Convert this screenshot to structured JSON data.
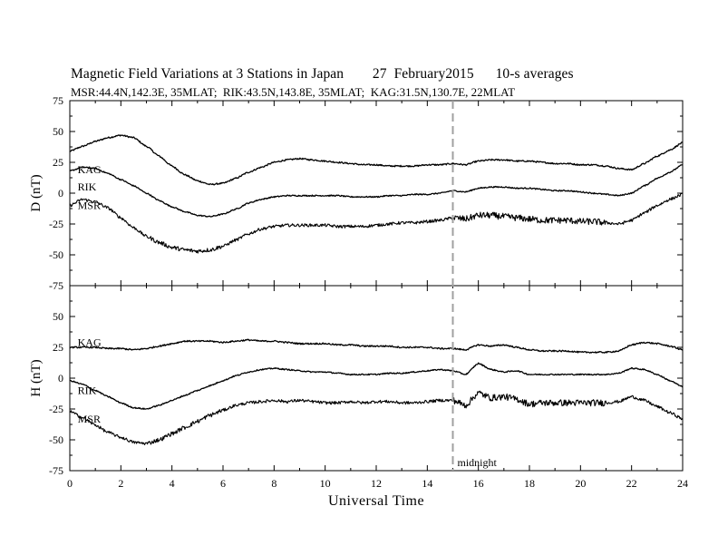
{
  "title": "Magnetic Field Variations at 3 Stations in Japan        27  February2015      10-s averages",
  "subtitle": "MSR:44.4N,142.3E, 35MLAT;  RIK:43.5N,143.8E, 35MLAT;  KAG:31.5N,130.7E, 22MLAT",
  "colors": {
    "trace": "#000000",
    "marker": "#a0a0a0",
    "axis": "#000000"
  },
  "chart_data": [
    {
      "type": "line",
      "panel": "top",
      "ylabel": "D (nT)",
      "xlabel": "",
      "ylim": [
        -75,
        75
      ],
      "xlim": [
        0,
        24
      ],
      "yticks": [
        75,
        50,
        25,
        0,
        -25,
        -50,
        -75
      ],
      "ytick_labels": [
        "75",
        "50",
        "25",
        "0",
        "-25",
        "-50",
        "-75"
      ],
      "grid": false,
      "series": [
        {
          "name": "KAG",
          "label_at": [
            0.2,
            19
          ],
          "noise": 0.6,
          "x": [
            0,
            0.5,
            1,
            1.5,
            2,
            2.5,
            3,
            3.5,
            4,
            4.5,
            5,
            5.5,
            6,
            6.5,
            7,
            7.5,
            8,
            8.5,
            9,
            9.5,
            10,
            10.5,
            11,
            11.5,
            12,
            12.5,
            13,
            13.5,
            14,
            14.5,
            15,
            15.5,
            16,
            16.5,
            17,
            17.5,
            18,
            18.5,
            19,
            19.5,
            20,
            20.5,
            21,
            21.5,
            22,
            22.5,
            23,
            23.5,
            24
          ],
          "y": [
            34,
            38,
            42,
            45,
            47,
            45,
            38,
            30,
            22,
            15,
            10,
            7,
            8,
            12,
            17,
            21,
            25,
            27,
            28,
            27,
            26,
            25,
            24,
            23,
            23,
            22,
            22,
            22,
            23,
            23,
            24,
            23,
            26,
            27,
            27,
            26,
            26,
            25,
            24,
            24,
            23,
            23,
            22,
            20,
            19,
            24,
            30,
            35,
            41
          ]
        },
        {
          "name": "RIK",
          "label_at": [
            0.2,
            5
          ],
          "noise": 0.5,
          "x": [
            0,
            0.5,
            1,
            1.5,
            2,
            2.5,
            3,
            3.5,
            4,
            4.5,
            5,
            5.5,
            6,
            6.5,
            7,
            7.5,
            8,
            8.5,
            9,
            9.5,
            10,
            10.5,
            11,
            11.5,
            12,
            12.5,
            13,
            13.5,
            14,
            14.5,
            15,
            15.5,
            16,
            16.5,
            17,
            17.5,
            18,
            18.5,
            19,
            19.5,
            20,
            20.5,
            21,
            21.5,
            22,
            22.5,
            23,
            23.5,
            24
          ],
          "y": [
            18,
            21,
            20,
            16,
            11,
            6,
            0,
            -6,
            -11,
            -15,
            -18,
            -19,
            -17,
            -13,
            -8,
            -5,
            -3,
            -2,
            -2,
            -2,
            -2,
            -2,
            -3,
            -3,
            -3,
            -2,
            -2,
            -1,
            -1,
            0,
            2,
            1,
            4,
            5,
            5,
            4,
            4,
            3,
            2,
            2,
            1,
            0,
            -1,
            -2,
            0,
            6,
            12,
            17,
            23
          ]
        },
        {
          "name": "MSR",
          "label_at": [
            0.2,
            -10
          ],
          "noise": 1.2,
          "x": [
            0,
            0.5,
            1,
            1.5,
            2,
            2.5,
            3,
            3.5,
            4,
            4.5,
            5,
            5.5,
            6,
            6.5,
            7,
            7.5,
            8,
            8.5,
            9,
            9.5,
            10,
            10.5,
            11,
            11.5,
            12,
            12.5,
            13,
            13.5,
            14,
            14.5,
            15,
            15.5,
            16,
            16.5,
            17,
            17.5,
            18,
            18.5,
            19,
            19.5,
            20,
            20.5,
            21,
            21.5,
            22,
            22.5,
            23,
            23.5,
            24
          ],
          "y": [
            -10,
            -5,
            -7,
            -12,
            -20,
            -28,
            -35,
            -40,
            -44,
            -46,
            -47,
            -46,
            -43,
            -38,
            -33,
            -29,
            -27,
            -26,
            -26,
            -26,
            -26,
            -27,
            -27,
            -27,
            -26,
            -25,
            -24,
            -24,
            -23,
            -22,
            -20,
            -21,
            -18,
            -18,
            -19,
            -20,
            -21,
            -22,
            -22,
            -22,
            -23,
            -23,
            -24,
            -25,
            -22,
            -16,
            -10,
            -5,
            -1
          ]
        }
      ]
    },
    {
      "type": "line",
      "panel": "bottom",
      "ylabel": "H (nT)",
      "xlabel": "Universal Time",
      "ylim": [
        -75,
        75
      ],
      "xlim": [
        0,
        24
      ],
      "yticks": [
        50,
        25,
        0,
        -25,
        -50,
        -75
      ],
      "ytick_labels": [
        "50",
        "25",
        "0",
        "-25",
        "-50",
        "-75"
      ],
      "xticks": [
        0,
        2,
        4,
        6,
        8,
        10,
        12,
        14,
        16,
        18,
        20,
        22,
        24
      ],
      "xtick_labels": [
        "0",
        "2",
        "4",
        "6",
        "8",
        "10",
        "12",
        "14",
        "16",
        "18",
        "20",
        "22",
        "24"
      ],
      "grid": false,
      "marker_line": {
        "x": 15,
        "label": "midnight"
      },
      "series": [
        {
          "name": "KAG",
          "label_at": [
            0.2,
            29
          ],
          "noise": 0.6,
          "x": [
            0,
            0.5,
            1,
            1.5,
            2,
            2.5,
            3,
            3.5,
            4,
            4.5,
            5,
            5.5,
            6,
            6.5,
            7,
            7.5,
            8,
            8.5,
            9,
            9.5,
            10,
            10.5,
            11,
            11.5,
            12,
            12.5,
            13,
            13.5,
            14,
            14.5,
            15,
            15.5,
            16,
            16.5,
            17,
            17.5,
            18,
            18.5,
            19,
            19.5,
            20,
            20.5,
            21,
            21.5,
            22,
            22.5,
            23,
            23.5,
            24
          ],
          "y": [
            25,
            25,
            25,
            24,
            24,
            23,
            24,
            26,
            28,
            30,
            30,
            30,
            29,
            30,
            31,
            30,
            30,
            29,
            28,
            28,
            28,
            27,
            27,
            26,
            26,
            26,
            25,
            25,
            25,
            24,
            24,
            23,
            27,
            26,
            27,
            25,
            23,
            22,
            22,
            22,
            21,
            21,
            21,
            22,
            27,
            29,
            28,
            26,
            23
          ]
        },
        {
          "name": "RIK",
          "label_at": [
            0.2,
            -10
          ],
          "noise": 0.5,
          "x": [
            0,
            0.5,
            1,
            1.5,
            2,
            2.5,
            3,
            3.5,
            4,
            4.5,
            5,
            5.5,
            6,
            6.5,
            7,
            7.5,
            8,
            8.5,
            9,
            9.5,
            10,
            10.5,
            11,
            11.5,
            12,
            12.5,
            13,
            13.5,
            14,
            14.5,
            15,
            15.5,
            16,
            16.5,
            17,
            17.5,
            18,
            18.5,
            19,
            19.5,
            20,
            20.5,
            21,
            21.5,
            22,
            22.5,
            23,
            23.5,
            24
          ],
          "y": [
            -2,
            -5,
            -10,
            -15,
            -20,
            -24,
            -25,
            -22,
            -18,
            -14,
            -10,
            -6,
            -2,
            2,
            5,
            7,
            8,
            7,
            6,
            5,
            5,
            4,
            3,
            3,
            3,
            4,
            4,
            5,
            6,
            7,
            6,
            3,
            12,
            7,
            5,
            6,
            3,
            3,
            3,
            3,
            3,
            3,
            3,
            4,
            8,
            7,
            3,
            -2,
            -7
          ]
        },
        {
          "name": "MSR",
          "label_at": [
            0.2,
            -33
          ],
          "noise": 1.2,
          "x": [
            0,
            0.5,
            1,
            1.5,
            2,
            2.5,
            3,
            3.5,
            4,
            4.5,
            5,
            5.5,
            6,
            6.5,
            7,
            7.5,
            8,
            8.5,
            9,
            9.5,
            10,
            10.5,
            11,
            11.5,
            12,
            12.5,
            13,
            13.5,
            14,
            14.5,
            15,
            15.5,
            16,
            16.5,
            17,
            17.5,
            18,
            18.5,
            19,
            19.5,
            20,
            20.5,
            21,
            21.5,
            22,
            22.5,
            23,
            23.5,
            24
          ],
          "y": [
            -27,
            -32,
            -38,
            -44,
            -48,
            -52,
            -53,
            -50,
            -45,
            -40,
            -35,
            -30,
            -26,
            -22,
            -20,
            -19,
            -18,
            -19,
            -18,
            -19,
            -20,
            -20,
            -19,
            -20,
            -19,
            -19,
            -20,
            -20,
            -19,
            -18,
            -18,
            -22,
            -12,
            -16,
            -15,
            -17,
            -21,
            -20,
            -20,
            -20,
            -20,
            -20,
            -20,
            -19,
            -15,
            -18,
            -23,
            -28,
            -33
          ]
        }
      ]
    }
  ]
}
